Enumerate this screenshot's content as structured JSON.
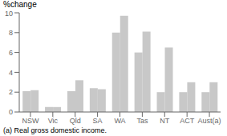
{
  "chart_data": {
    "type": "bar",
    "ylabel": "%change",
    "categories": [
      "NSW",
      "Vic",
      "Qld",
      "SA",
      "WA",
      "Tas",
      "NT",
      "ACT",
      "Aust(a)"
    ],
    "series": [
      {
        "color": "#c8c8c8",
        "values": [
          2.1,
          0.5,
          2.1,
          2.4,
          8.0,
          6.0,
          2.0,
          2.0,
          2.0
        ]
      },
      {
        "color": "#c8c8c8",
        "values": [
          2.2,
          0.5,
          3.2,
          2.3,
          9.7,
          8.1,
          6.5,
          3.0,
          3.0
        ]
      }
    ],
    "ylim": [
      0,
      10
    ],
    "yticks": [
      0,
      2,
      4,
      6,
      8,
      10
    ],
    "grid": false,
    "annotations": [
      "(a) Real gross domestic income."
    ]
  }
}
